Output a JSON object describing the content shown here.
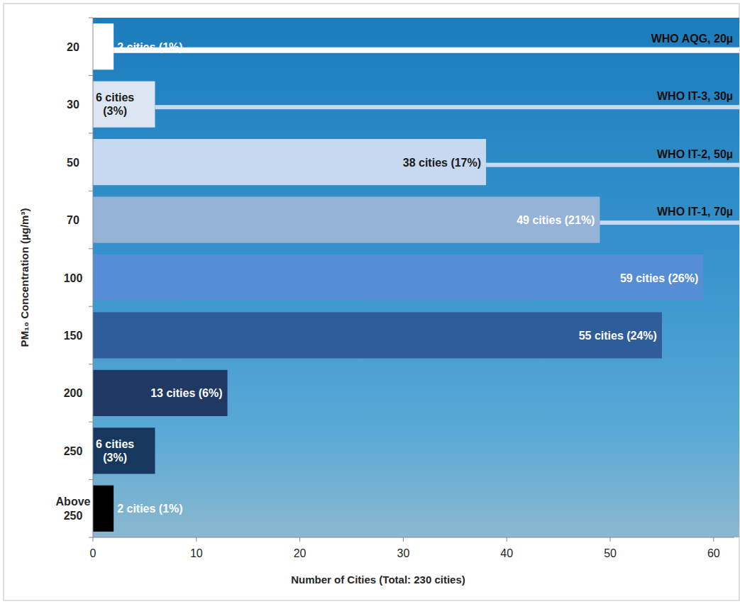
{
  "chart_data": {
    "type": "bar",
    "orientation": "horizontal",
    "categories": [
      "20",
      "30",
      "50",
      "70",
      "100",
      "150",
      "200",
      "250",
      "Above 250"
    ],
    "values": [
      2,
      6,
      38,
      49,
      59,
      55,
      13,
      6,
      2
    ],
    "value_labels": [
      "2 cities (1%)",
      "6 cities (3%)",
      "38 cities (17%)",
      "49 cities (21%)",
      "59 cities (26%)",
      "55 cities (24%)",
      "13 cities (6%)",
      "6 cities (3%)",
      "2 cities (1%)"
    ],
    "colors": [
      "#ffffff",
      "#dce6f2",
      "#c6d9f1",
      "#95b3d7",
      "#558ed5",
      "#2f5d99",
      "#1f3864",
      "#17375e",
      "#000000"
    ],
    "data_labels": true,
    "x_label": "Number of Cities (Total: 230 cities)",
    "y_label": "PM₁₀ Concentration (µg/m³)",
    "xlim": [
      0,
      62
    ],
    "xticks": [
      0,
      10,
      20,
      30,
      40,
      50,
      60
    ],
    "grid": false,
    "annotations": [
      {
        "text": "WHO AQG, 20µ",
        "category": "20"
      },
      {
        "text": "WHO IT-3, 30µ",
        "category": "30"
      },
      {
        "text": "WHO IT-2, 50µ",
        "category": "50"
      },
      {
        "text": "WHO IT-1, 70µ",
        "category": "70"
      }
    ]
  }
}
